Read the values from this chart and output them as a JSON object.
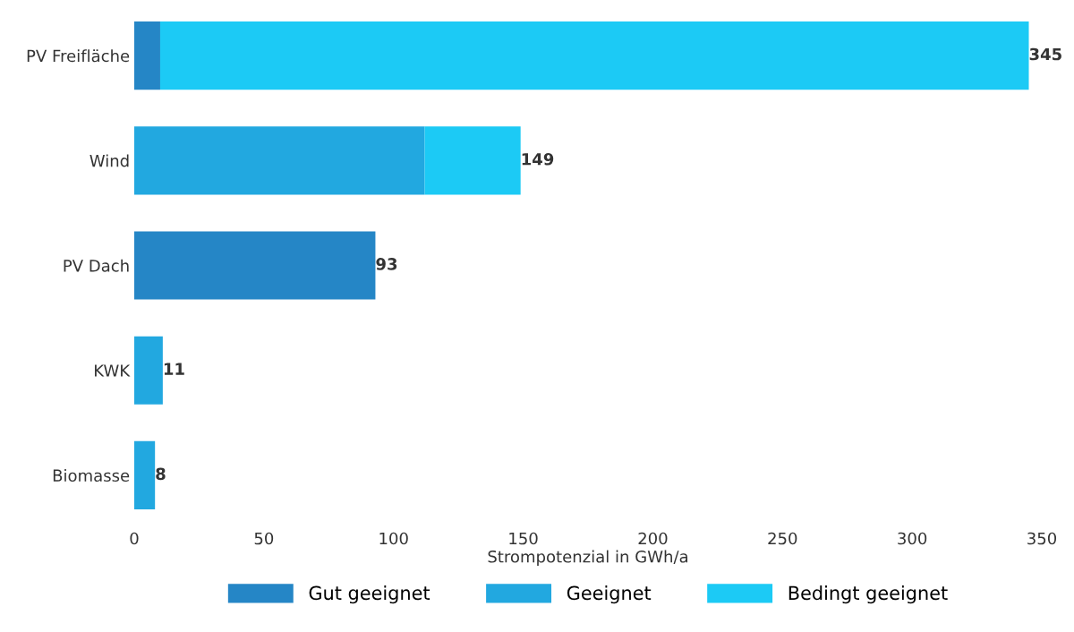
{
  "chart_data": {
    "type": "bar",
    "orientation": "horizontal",
    "stacked": true,
    "categories": [
      "PV Freifläche",
      "Wind",
      "PV Dach",
      "KWK",
      "Biomasse"
    ],
    "series": [
      {
        "name": "Gut geeignet",
        "color": "#2586c6",
        "values": [
          10,
          0,
          93,
          0,
          0
        ]
      },
      {
        "name": "Geeignet",
        "color": "#22a8e0",
        "values": [
          0,
          112,
          0,
          11,
          8
        ]
      },
      {
        "name": "Bedingt geeignet",
        "color": "#1ccaf5",
        "values": [
          335,
          37,
          0,
          0,
          0
        ]
      }
    ],
    "totals": [
      "345",
      "149",
      "93",
      "11",
      "8"
    ],
    "xlabel": "Strompotenzial in GWh/a",
    "xlim": [
      0,
      350
    ],
    "xticks": [
      0,
      50,
      100,
      150,
      200,
      250,
      300,
      350
    ],
    "grid": false,
    "legend": "bottom"
  }
}
